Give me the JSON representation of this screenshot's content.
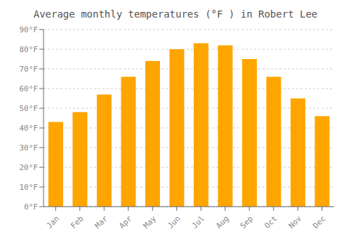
{
  "chart_data": {
    "type": "bar",
    "title": "Average monthly temperatures (°F ) in Robert Lee",
    "categories": [
      "Jan",
      "Feb",
      "Mar",
      "Apr",
      "May",
      "Jun",
      "Jul",
      "Aug",
      "Sep",
      "Oct",
      "Nov",
      "Dec"
    ],
    "values": [
      43,
      48,
      57,
      66,
      74,
      80,
      83,
      82,
      75,
      66,
      55,
      46
    ],
    "color": "#FFA500",
    "ylim": [
      0,
      90
    ],
    "yticks": [
      {
        "value": 0,
        "label": "0°F"
      },
      {
        "value": 10,
        "label": "10°F"
      },
      {
        "value": 20,
        "label": "20°F"
      },
      {
        "value": 30,
        "label": "30°F"
      },
      {
        "value": 40,
        "label": "40°F"
      },
      {
        "value": 50,
        "label": "50°F"
      },
      {
        "value": 60,
        "label": "60°F"
      },
      {
        "value": 70,
        "label": "70°F"
      },
      {
        "value": 80,
        "label": "80°F"
      },
      {
        "value": 90,
        "label": "90°F"
      }
    ],
    "grid": true
  }
}
